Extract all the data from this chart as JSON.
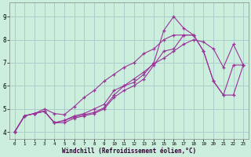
{
  "xlabel": "Windchill (Refroidissement éolien,°C)",
  "bg_color": "#cceedd",
  "grid_color": "#aacccc",
  "line_color": "#993399",
  "xlim": [
    -0.5,
    23.5
  ],
  "ylim": [
    3.7,
    9.6
  ],
  "xticks": [
    0,
    1,
    2,
    3,
    4,
    5,
    6,
    7,
    8,
    9,
    10,
    11,
    12,
    13,
    14,
    15,
    16,
    17,
    18,
    19,
    20,
    21,
    22,
    23
  ],
  "yticks": [
    4,
    5,
    6,
    7,
    8,
    9
  ],
  "series": [
    {
      "x": [
        0,
        1,
        2,
        3,
        4,
        5,
        6,
        7,
        8,
        9,
        10,
        11,
        12,
        13,
        14,
        15,
        16,
        17,
        18,
        19,
        20,
        21,
        22,
        23
      ],
      "y": [
        4.0,
        4.7,
        4.8,
        4.9,
        4.4,
        4.4,
        4.6,
        4.7,
        4.8,
        5.0,
        5.5,
        5.8,
        6.0,
        6.3,
        6.9,
        7.5,
        7.6,
        8.2,
        8.2,
        7.5,
        6.2,
        5.6,
        6.9,
        6.9
      ]
    },
    {
      "x": [
        0,
        1,
        2,
        3,
        4,
        5,
        6,
        7,
        8,
        9,
        10,
        11,
        12,
        13,
        14,
        15,
        16,
        17,
        18,
        19,
        20,
        21,
        22,
        23
      ],
      "y": [
        4.0,
        4.7,
        4.8,
        4.9,
        4.4,
        4.5,
        4.65,
        4.75,
        4.85,
        5.05,
        5.6,
        6.0,
        6.15,
        6.5,
        7.0,
        8.4,
        9.0,
        8.5,
        8.2,
        7.5,
        6.2,
        5.6,
        5.6,
        6.9
      ]
    },
    {
      "x": [
        0,
        1,
        2,
        3,
        4,
        5,
        6,
        7,
        8,
        9,
        10,
        11,
        12,
        13,
        14,
        15,
        16,
        17,
        18
      ],
      "y": [
        4.0,
        4.7,
        4.8,
        5.0,
        4.8,
        4.75,
        5.1,
        5.5,
        5.8,
        6.2,
        6.5,
        6.8,
        7.0,
        7.4,
        7.6,
        8.0,
        8.2,
        8.2,
        8.2
      ]
    },
    {
      "x": [
        0,
        1,
        2,
        3,
        4,
        5,
        6,
        7,
        8,
        9,
        10,
        11,
        12,
        13,
        14,
        15,
        16,
        17,
        18,
        19,
        20,
        21,
        22,
        23
      ],
      "y": [
        4.0,
        4.7,
        4.8,
        4.9,
        4.4,
        4.5,
        4.7,
        4.8,
        5.0,
        5.2,
        5.8,
        6.0,
        6.3,
        6.6,
        6.95,
        7.2,
        7.5,
        7.8,
        8.0,
        7.9,
        7.6,
        6.8,
        7.8,
        6.9
      ]
    }
  ]
}
